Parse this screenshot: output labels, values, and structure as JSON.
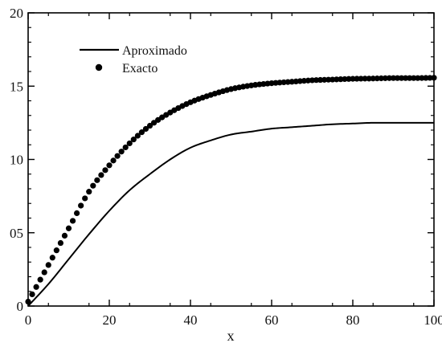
{
  "chart_data": {
    "type": "line",
    "title": "",
    "xlabel": "x",
    "ylabel": "",
    "xlim": [
      0,
      100
    ],
    "ylim": [
      0,
      20
    ],
    "x_ticks": [
      0,
      20,
      40,
      60,
      80,
      100
    ],
    "x_tick_labels": [
      "0",
      "20",
      "40",
      "60",
      "80",
      "100"
    ],
    "y_ticks": [
      0,
      5,
      10,
      15,
      20
    ],
    "y_tick_labels": [
      "0",
      "05",
      "10",
      "15",
      "20"
    ],
    "grid": false,
    "legend_position": "top-left",
    "series": [
      {
        "name": "Aproximado",
        "style": "line",
        "color": "#000000",
        "x": [
          0,
          5,
          10,
          15,
          20,
          25,
          30,
          35,
          40,
          45,
          50,
          55,
          60,
          65,
          70,
          75,
          80,
          85,
          90,
          95,
          100
        ],
        "y": [
          0,
          1.5,
          3.2,
          4.9,
          6.5,
          7.9,
          9.0,
          10.0,
          10.8,
          11.3,
          11.7,
          11.9,
          12.1,
          12.2,
          12.3,
          12.4,
          12.45,
          12.5,
          12.5,
          12.5,
          12.5
        ]
      },
      {
        "name": "Exacto",
        "style": "markers",
        "color": "#000000",
        "x": [
          0,
          5,
          10,
          15,
          20,
          25,
          30,
          35,
          40,
          45,
          50,
          55,
          60,
          65,
          70,
          75,
          80,
          85,
          90,
          95,
          100
        ],
        "y": [
          0.3,
          2.8,
          5.3,
          7.8,
          9.6,
          11.1,
          12.3,
          13.2,
          13.9,
          14.4,
          14.8,
          15.05,
          15.2,
          15.3,
          15.4,
          15.45,
          15.5,
          15.52,
          15.55,
          15.55,
          15.57
        ]
      }
    ]
  }
}
